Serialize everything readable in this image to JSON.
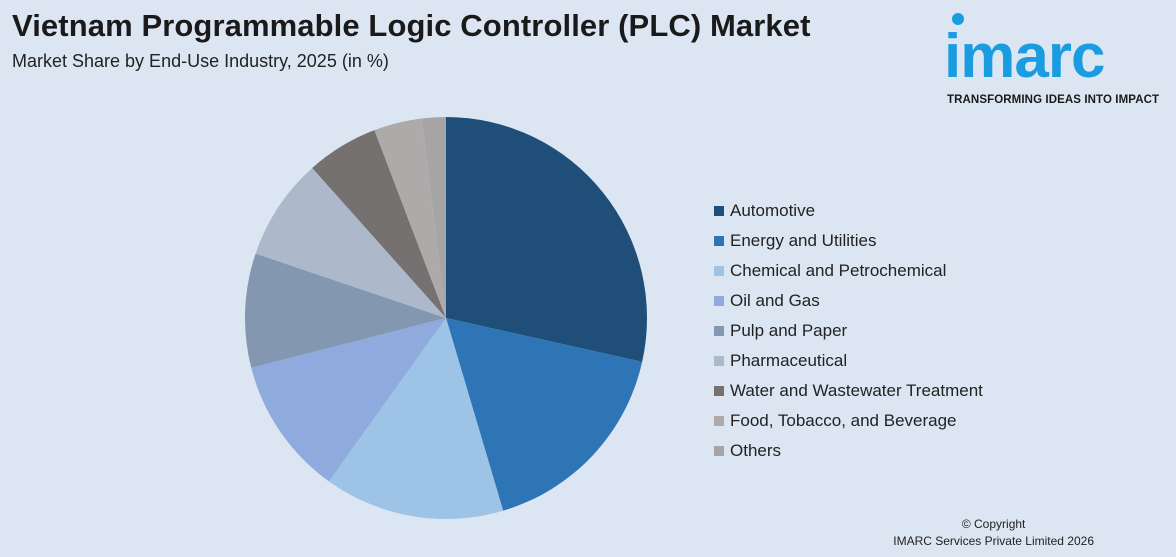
{
  "header": {
    "title": "Vietnam Programmable Logic Controller (PLC) Market",
    "subtitle": "Market Share by End-Use Industry, 2025 (in %)"
  },
  "logo": {
    "word": "imarc",
    "tagline": "TRANSFORMING IDEAS INTO IMPACT"
  },
  "footer": {
    "line1": "© Copyright",
    "line2": "IMARC Services Private Limited 2026"
  },
  "chart_data": {
    "type": "pie",
    "title": "Vietnam Programmable Logic Controller (PLC) Market",
    "subtitle": "Market Share by End-Use Industry, 2025 (in %)",
    "legend_position": "right",
    "series": [
      {
        "name": "Automotive",
        "value": 29.5,
        "color": "#1f4e79"
      },
      {
        "name": "Energy and Utilities",
        "value": 17.5,
        "color": "#2e75b6"
      },
      {
        "name": "Chemical and Petrochemical",
        "value": 15.0,
        "color": "#9dc3e6"
      },
      {
        "name": "Oil and Gas",
        "value": 11.5,
        "color": "#8faadc"
      },
      {
        "name": "Pulp and Paper",
        "value": 9.5,
        "color": "#8497b0"
      },
      {
        "name": "Pharmaceutical",
        "value": 8.5,
        "color": "#adb9ca"
      },
      {
        "name": "Water and Wastewater Treatment",
        "value": 6.0,
        "color": "#767171"
      },
      {
        "name": "Food, Tobacco, and Beverage",
        "value": 4.0,
        "color": "#aeaaaa"
      },
      {
        "name": "Others",
        "value": 2.0,
        "color": "#a5a5a5"
      }
    ]
  }
}
